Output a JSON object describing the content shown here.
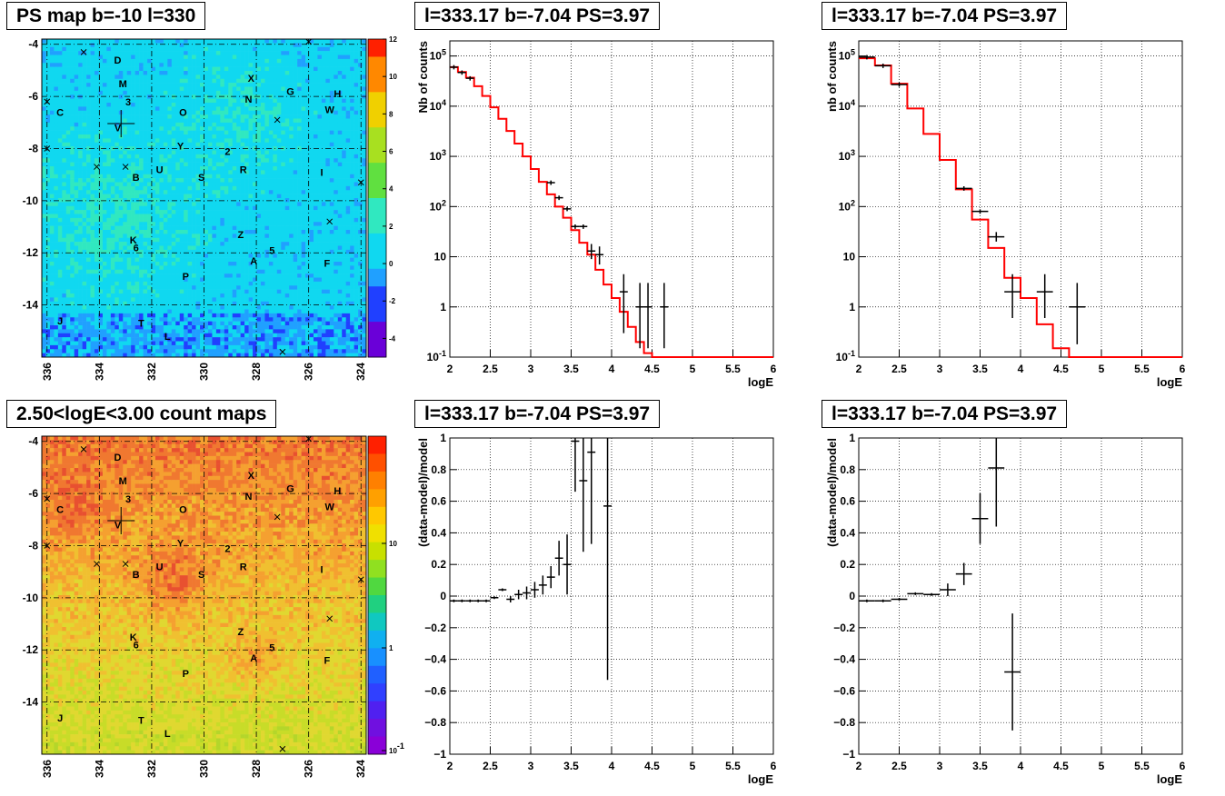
{
  "panels": {
    "map_ps": {
      "title": "PS map b=-10 l=330"
    },
    "map_counts": {
      "title": "2.50<logE<3.00 count maps"
    },
    "spec_left": {
      "title": "l=333.17 b=-7.04 PS=3.97"
    },
    "spec_right": {
      "title": "l=333.17 b=-7.04 PS=3.97"
    },
    "res_left": {
      "title": "l=333.17 b=-7.04 PS=3.97"
    },
    "res_right": {
      "title": "l=333.17 b=-7.04 PS=3.97"
    }
  },
  "colors": {
    "model": "#ff0000",
    "data": "#000000",
    "grid": "#000000"
  },
  "chart_data": [
    {
      "type": "heatmap",
      "id": "map_ps",
      "title": "PS map b=-10 l=330",
      "x_ticks": [
        "336",
        "334",
        "332",
        "330",
        "328",
        "326",
        "324"
      ],
      "y_ticks": [
        "-4",
        "-6",
        "-8",
        "-10",
        "-12",
        "-14"
      ],
      "xlim": [
        336.2,
        323.8
      ],
      "ylim": [
        -16,
        -3.8
      ],
      "colorbar_ticks": [
        "12",
        "10",
        "8",
        "6",
        "4",
        "2",
        "0",
        "-2",
        "-4"
      ],
      "zlim": [
        -5,
        12
      ],
      "sources": [
        {
          "label": "D",
          "l": 333.3,
          "b": -4.6
        },
        {
          "label": "M",
          "l": 333.1,
          "b": -5.5
        },
        {
          "label": "3",
          "l": 332.9,
          "b": -6.2
        },
        {
          "label": "C",
          "l": 335.5,
          "b": -6.6
        },
        {
          "label": "V",
          "l": 333.3,
          "b": -7.2
        },
        {
          "label": "O",
          "l": 330.8,
          "b": -6.6
        },
        {
          "label": "X",
          "l": 328.2,
          "b": -5.3
        },
        {
          "label": "N",
          "l": 328.3,
          "b": -6.1
        },
        {
          "label": "G",
          "l": 326.7,
          "b": -5.8
        },
        {
          "label": "H",
          "l": 324.9,
          "b": -5.9
        },
        {
          "label": "W",
          "l": 325.2,
          "b": -6.5
        },
        {
          "label": "Y",
          "l": 330.9,
          "b": -7.9
        },
        {
          "label": "2",
          "l": 329.1,
          "b": -8.1
        },
        {
          "label": "U",
          "l": 331.7,
          "b": -8.8
        },
        {
          "label": "B",
          "l": 332.6,
          "b": -9.1
        },
        {
          "label": "S",
          "l": 330.1,
          "b": -9.1
        },
        {
          "label": "R",
          "l": 328.5,
          "b": -8.8
        },
        {
          "label": "I",
          "l": 325.5,
          "b": -8.9
        },
        {
          "label": "K",
          "l": 332.7,
          "b": -11.5
        },
        {
          "label": "6",
          "l": 332.6,
          "b": -11.8
        },
        {
          "label": "Z",
          "l": 328.6,
          "b": -11.3
        },
        {
          "label": "5",
          "l": 327.4,
          "b": -11.9
        },
        {
          "label": "A",
          "l": 328.1,
          "b": -12.3
        },
        {
          "label": "F",
          "l": 325.3,
          "b": -12.4
        },
        {
          "label": "P",
          "l": 330.7,
          "b": -12.9
        },
        {
          "label": "J",
          "l": 335.5,
          "b": -14.6
        },
        {
          "label": "T",
          "l": 332.4,
          "b": -14.7
        },
        {
          "label": "L",
          "l": 331.4,
          "b": -15.2
        }
      ],
      "target": {
        "l": 333.17,
        "b": -7.04
      }
    },
    {
      "type": "heatmap",
      "id": "map_counts",
      "title": "2.50<logE<3.00 count maps",
      "x_ticks": [
        "336",
        "334",
        "332",
        "330",
        "328",
        "326",
        "324"
      ],
      "y_ticks": [
        "-4",
        "-6",
        "-8",
        "-10",
        "-12",
        "-14"
      ],
      "xlim": [
        336.2,
        323.8
      ],
      "ylim": [
        -16,
        -3.8
      ],
      "colorbar_ticks": [
        "10",
        "1",
        "10^{-1}"
      ],
      "colorbar_scale": "log",
      "target": {
        "l": 333.17,
        "b": -7.04
      }
    },
    {
      "type": "line",
      "id": "spec_left",
      "title": "l=333.17 b=-7.04 PS=3.97",
      "xlabel": "logE",
      "ylabel": "Nb of counts",
      "xlim": [
        2,
        6
      ],
      "ylim": [
        0.1,
        200000
      ],
      "yscale": "log",
      "x_ticks": [
        "2",
        "2.5",
        "3",
        "3.5",
        "4",
        "4.5",
        "5",
        "5.5",
        "6"
      ],
      "y_ticks": [
        "10^{-1}",
        "1",
        "10",
        "10^{2}",
        "10^{3}",
        "10^{4}",
        "10^{5}"
      ],
      "model_step": [
        [
          2.0,
          60000
        ],
        [
          2.1,
          48000
        ],
        [
          2.2,
          37000
        ],
        [
          2.3,
          25000
        ],
        [
          2.4,
          16000
        ],
        [
          2.5,
          9500
        ],
        [
          2.6,
          5600
        ],
        [
          2.7,
          3200
        ],
        [
          2.8,
          1800
        ],
        [
          2.9,
          1000
        ],
        [
          3.0,
          560
        ],
        [
          3.1,
          310
        ],
        [
          3.2,
          175
        ],
        [
          3.3,
          100
        ],
        [
          3.4,
          60
        ],
        [
          3.5,
          34
        ],
        [
          3.6,
          19
        ],
        [
          3.7,
          11
        ],
        [
          3.8,
          5.5
        ],
        [
          3.9,
          2.8
        ],
        [
          4.0,
          1.5
        ],
        [
          4.1,
          0.8
        ],
        [
          4.2,
          0.4
        ],
        [
          4.3,
          0.2
        ],
        [
          4.4,
          0.12
        ],
        [
          4.5,
          0.1
        ],
        [
          6.0,
          0.1
        ]
      ],
      "points": [
        {
          "x": 2.05,
          "y": 60000,
          "xe": 0.05
        },
        {
          "x": 2.15,
          "y": 47000,
          "xe": 0.05
        },
        {
          "x": 2.25,
          "y": 36000,
          "xe": 0.05
        },
        {
          "x": 3.25,
          "y": 300,
          "xe": 0.05
        },
        {
          "x": 3.35,
          "y": 150,
          "xe": 0.05
        },
        {
          "x": 3.45,
          "y": 90,
          "xe": 0.05
        },
        {
          "x": 3.55,
          "y": 40,
          "xe": 0.05
        },
        {
          "x": 3.65,
          "y": 40,
          "xe": 0.05
        },
        {
          "x": 3.75,
          "y": 13,
          "xe": 0.05,
          "ylo": 9,
          "yhi": 18
        },
        {
          "x": 3.85,
          "y": 11,
          "xe": 0.05,
          "ylo": 7,
          "yhi": 16
        },
        {
          "x": 4.15,
          "y": 2,
          "xe": 0.05,
          "ylo": 0.3,
          "yhi": 4.5
        },
        {
          "x": 4.35,
          "y": 1,
          "xe": 0.05,
          "ylo": 0.15,
          "yhi": 3
        },
        {
          "x": 4.45,
          "y": 1,
          "xe": 0.05,
          "ylo": 0.15,
          "yhi": 3
        },
        {
          "x": 4.65,
          "y": 1,
          "xe": 0.05,
          "ylo": 0.15,
          "yhi": 3
        }
      ]
    },
    {
      "type": "line",
      "id": "spec_right",
      "title": "l=333.17 b=-7.04 PS=3.97",
      "xlabel": "logE",
      "ylabel": "nb of counts",
      "xlim": [
        2,
        6
      ],
      "ylim": [
        0.1,
        200000
      ],
      "yscale": "log",
      "x_ticks": [
        "2",
        "2.5",
        "3",
        "3.5",
        "4",
        "4.5",
        "5",
        "5.5",
        "6"
      ],
      "y_ticks": [
        "10^{-1}",
        "1",
        "10",
        "10^{2}",
        "10^{3}",
        "10^{4}",
        "10^{5}"
      ],
      "model_step": [
        [
          2.0,
          90000
        ],
        [
          2.2,
          65000
        ],
        [
          2.4,
          28000
        ],
        [
          2.6,
          9000
        ],
        [
          2.8,
          2800
        ],
        [
          3.0,
          850
        ],
        [
          3.2,
          220
        ],
        [
          3.4,
          55
        ],
        [
          3.6,
          15
        ],
        [
          3.8,
          3.8
        ],
        [
          4.0,
          1.5
        ],
        [
          4.2,
          0.45
        ],
        [
          4.4,
          0.15
        ],
        [
          4.6,
          0.1
        ],
        [
          6.0,
          0.1
        ]
      ],
      "points": [
        {
          "x": 2.1,
          "y": 95000,
          "xe": 0.1
        },
        {
          "x": 2.3,
          "y": 64000,
          "xe": 0.1
        },
        {
          "x": 2.5,
          "y": 27000,
          "xe": 0.1
        },
        {
          "x": 3.3,
          "y": 230,
          "xe": 0.1
        },
        {
          "x": 3.5,
          "y": 80,
          "xe": 0.1
        },
        {
          "x": 3.7,
          "y": 25,
          "xe": 0.1,
          "ylo": 20,
          "yhi": 31
        },
        {
          "x": 3.9,
          "y": 2,
          "xe": 0.1,
          "ylo": 0.6,
          "yhi": 4.5
        },
        {
          "x": 4.3,
          "y": 2,
          "xe": 0.1,
          "ylo": 0.6,
          "yhi": 4.5
        },
        {
          "x": 4.7,
          "y": 1,
          "xe": 0.1,
          "ylo": 0.18,
          "yhi": 3
        }
      ]
    },
    {
      "type": "scatter",
      "id": "res_left",
      "title": "l=333.17 b=-7.04 PS=3.97",
      "xlabel": "logE",
      "ylabel": "(data-model)/model",
      "xlim": [
        2,
        6
      ],
      "ylim": [
        -1,
        1
      ],
      "x_ticks": [
        "2",
        "2.5",
        "3",
        "3.5",
        "4",
        "4.5",
        "5",
        "5.5",
        "6"
      ],
      "y_ticks": [
        "−1",
        "−0.8",
        "−0.6",
        "−0.4",
        "−0.2",
        "0",
        "0.2",
        "0.4",
        "0.6",
        "0.8",
        "1"
      ],
      "points": [
        {
          "x": 2.05,
          "y": -0.03,
          "xe": 0.05
        },
        {
          "x": 2.15,
          "y": -0.03,
          "xe": 0.05
        },
        {
          "x": 2.25,
          "y": -0.03,
          "xe": 0.05
        },
        {
          "x": 2.35,
          "y": -0.03,
          "xe": 0.05
        },
        {
          "x": 2.45,
          "y": -0.03,
          "xe": 0.05
        },
        {
          "x": 2.55,
          "y": -0.01,
          "xe": 0.05
        },
        {
          "x": 2.65,
          "y": 0.04,
          "xe": 0.05
        },
        {
          "x": 2.75,
          "y": -0.02,
          "xe": 0.05,
          "ye": 0.02
        },
        {
          "x": 2.85,
          "y": 0.01,
          "xe": 0.05,
          "ye": 0.03
        },
        {
          "x": 2.95,
          "y": 0.02,
          "xe": 0.05,
          "ye": 0.04
        },
        {
          "x": 3.05,
          "y": 0.04,
          "xe": 0.05,
          "ye": 0.05
        },
        {
          "x": 3.15,
          "y": 0.07,
          "xe": 0.05,
          "ye": 0.06
        },
        {
          "x": 3.25,
          "y": 0.12,
          "xe": 0.05,
          "ye": 0.07
        },
        {
          "x": 3.35,
          "y": 0.24,
          "xe": 0.05,
          "ye": 0.11
        },
        {
          "x": 3.45,
          "y": 0.2,
          "xe": 0.05,
          "ye": 0.19
        },
        {
          "x": 3.55,
          "y": 0.98,
          "xe": 0.05,
          "ye": 0.32
        },
        {
          "x": 3.65,
          "y": 0.73,
          "xe": 0.05,
          "ye": 0.45
        },
        {
          "x": 3.75,
          "y": 0.91,
          "xe": 0.05,
          "ye": 0.58
        },
        {
          "x": 3.95,
          "y": 0.57,
          "xe": 0.05,
          "ye": 1.1
        }
      ]
    },
    {
      "type": "scatter",
      "id": "res_right",
      "title": "l=333.17 b=-7.04 PS=3.97",
      "xlabel": "logE",
      "ylabel": "(data-model)/model",
      "xlim": [
        2,
        6
      ],
      "ylim": [
        -1,
        1
      ],
      "x_ticks": [
        "2",
        "2.5",
        "3",
        "3.5",
        "4",
        "4.5",
        "5",
        "5.5",
        "6"
      ],
      "y_ticks": [
        "−1",
        "−0.8",
        "−0.6",
        "−0.4",
        "−0.2",
        "0",
        "0.2",
        "0.4",
        "0.6",
        "0.8",
        "1"
      ],
      "points": [
        {
          "x": 2.1,
          "y": -0.03,
          "xe": 0.1
        },
        {
          "x": 2.3,
          "y": -0.03,
          "xe": 0.1
        },
        {
          "x": 2.5,
          "y": -0.02,
          "xe": 0.1
        },
        {
          "x": 2.7,
          "y": 0.015,
          "xe": 0.1
        },
        {
          "x": 2.9,
          "y": 0.01,
          "xe": 0.1
        },
        {
          "x": 3.1,
          "y": 0.04,
          "xe": 0.1,
          "ye": 0.04
        },
        {
          "x": 3.3,
          "y": 0.14,
          "xe": 0.1,
          "ye": 0.07
        },
        {
          "x": 3.5,
          "y": 0.49,
          "xe": 0.1,
          "ye": 0.16
        },
        {
          "x": 3.7,
          "y": 0.81,
          "xe": 0.1,
          "ye": 0.37
        },
        {
          "x": 3.9,
          "y": -0.48,
          "xe": 0.1,
          "ye": 0.37
        }
      ]
    }
  ]
}
